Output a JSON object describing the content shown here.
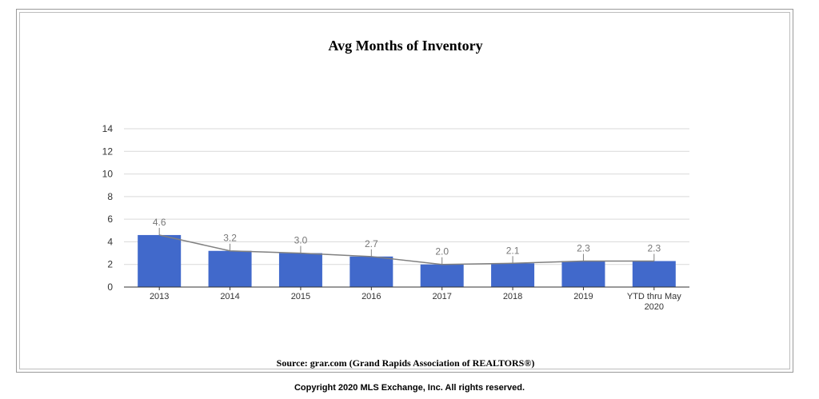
{
  "title": "Avg Months of Inventory",
  "source": "Source: grar.com (Grand Rapids Association of REALTORS®)",
  "copyright": "Copyright 2020 MLS Exchange, Inc. All rights reserved.",
  "colors": {
    "bar": "#4169CB",
    "line": "#808080",
    "grid": "#d9d9d9",
    "axis": "#333333"
  },
  "chart_data": {
    "type": "bar",
    "title": "Avg Months of Inventory",
    "categories": [
      "2013",
      "2014",
      "2015",
      "2016",
      "2017",
      "2018",
      "2019",
      "YTD thru May 2020"
    ],
    "category_lines": [
      [
        "2013"
      ],
      [
        "2014"
      ],
      [
        "2015"
      ],
      [
        "2016"
      ],
      [
        "2017"
      ],
      [
        "2018"
      ],
      [
        "2019"
      ],
      [
        "YTD thru May",
        "2020"
      ]
    ],
    "series": [
      {
        "values": [
          4.6,
          3.2,
          3.0,
          2.7,
          2.0,
          2.1,
          2.3,
          2.3
        ],
        "render": "bar"
      },
      {
        "values": [
          4.6,
          3.2,
          3.0,
          2.7,
          2.0,
          2.1,
          2.3,
          2.3
        ],
        "render": "line"
      }
    ],
    "data_labels": [
      "4.6",
      "3.2",
      "3.0",
      "2.7",
      "2.0",
      "2.1",
      "2.3",
      "2.3"
    ],
    "xlabel": "",
    "ylabel": "",
    "ylim": [
      0,
      14
    ],
    "yticks": [
      0,
      2,
      4,
      6,
      8,
      10,
      12,
      14
    ],
    "grid": true,
    "legend": "none"
  }
}
